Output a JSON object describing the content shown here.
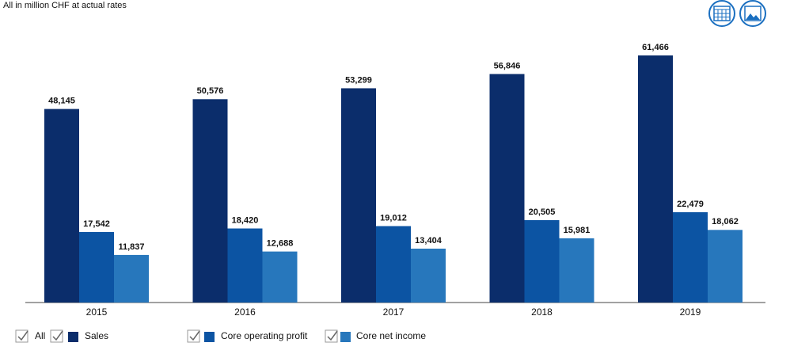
{
  "chart_data": {
    "type": "bar",
    "subtitle": "All in million CHF at actual rates",
    "categories": [
      "2015",
      "2016",
      "2017",
      "2018",
      "2019"
    ],
    "series": [
      {
        "name": "Sales",
        "color": "#0b2d6b",
        "values": [
          48145,
          50576,
          53299,
          56846,
          61466
        ],
        "value_labels": [
          "48,145",
          "50,576",
          "53,299",
          "56,846",
          "61,466"
        ]
      },
      {
        "name": "Core operating profit",
        "color": "#0c54a3",
        "values": [
          17542,
          18420,
          19012,
          20505,
          22479
        ],
        "value_labels": [
          "17,542",
          "18,420",
          "19,012",
          "20,505",
          "22,479"
        ]
      },
      {
        "name": "Core net income",
        "color": "#2777bc",
        "values": [
          11837,
          12688,
          13404,
          15981,
          18062
        ],
        "value_labels": [
          "11,837",
          "12,688",
          "13,404",
          "15,981",
          "18,062"
        ]
      }
    ],
    "legend_all": "All"
  }
}
